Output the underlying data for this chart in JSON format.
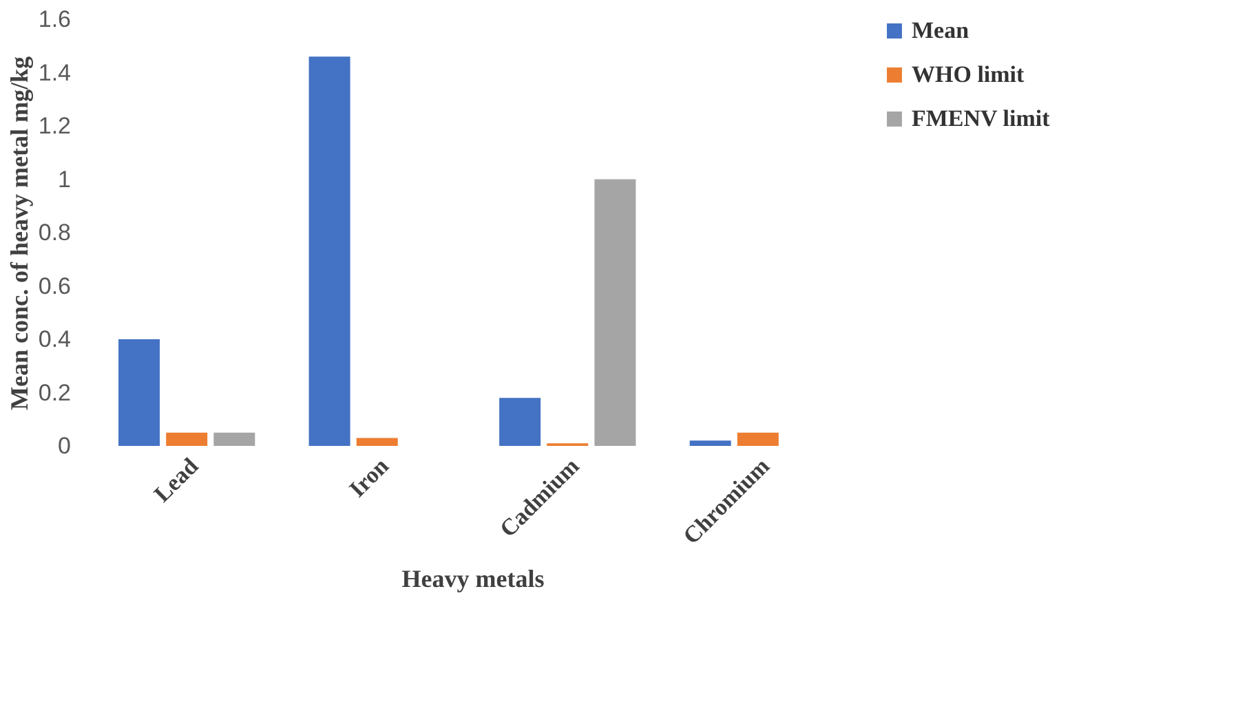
{
  "chart_data": {
    "type": "bar",
    "xlabel": "Heavy metals",
    "ylabel": "Mean conc. of heavy metal mg/kg",
    "categories": [
      "Lead",
      "Iron",
      "Cadmium",
      "Chromium"
    ],
    "series": [
      {
        "name": "Mean",
        "color": "#4472c4",
        "values": [
          0.4,
          1.46,
          0.18,
          0.02
        ]
      },
      {
        "name": "WHO limit",
        "color": "#ed7d31",
        "values": [
          0.05,
          0.03,
          0.01,
          0.05
        ]
      },
      {
        "name": "FMENV limit",
        "color": "#a5a5a5",
        "values": [
          0.05,
          null,
          1.0,
          null
        ]
      }
    ],
    "ylim": [
      0,
      1.6
    ],
    "yticks": [
      0,
      0.2,
      0.4,
      0.6,
      0.8,
      1,
      1.2,
      1.4,
      1.6
    ],
    "grid": false,
    "legend": "right"
  }
}
